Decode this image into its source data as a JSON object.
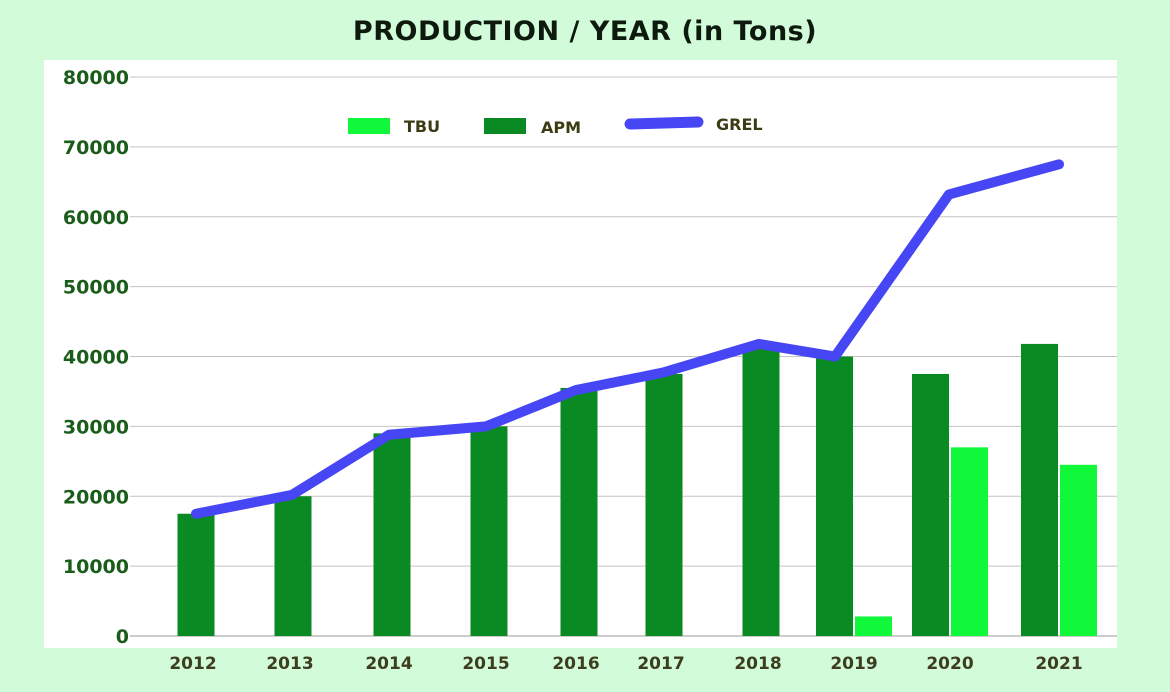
{
  "chart_data": {
    "type": "bar",
    "title": "PRODUCTION / YEAR (in Tons)",
    "xlabel": "",
    "ylabel": "",
    "categories": [
      "2012",
      "2013",
      "2014",
      "2015",
      "2016",
      "2017",
      "2018",
      "2019",
      "2020",
      "2021"
    ],
    "ylim": [
      0,
      80000
    ],
    "yticks": [
      "0",
      "10000",
      "20000",
      "30000",
      "40000",
      "50000",
      "60000",
      "70000",
      "80000"
    ],
    "grid": true,
    "legend_position": "top",
    "series": [
      {
        "name": "TBU",
        "kind": "bar",
        "color": "#11f83a",
        "values": [
          null,
          null,
          null,
          null,
          null,
          null,
          null,
          2800,
          27000,
          24500
        ]
      },
      {
        "name": "APM",
        "kind": "bar",
        "color": "#0a8a22",
        "values": [
          17500,
          20000,
          29000,
          30000,
          35500,
          37500,
          41500,
          40000,
          37500,
          41800
        ]
      },
      {
        "name": "GREL",
        "kind": "line",
        "color": "#4646f5",
        "values": [
          17500,
          20200,
          28800,
          30000,
          35200,
          37700,
          41800,
          40000,
          63200,
          67500
        ]
      }
    ]
  }
}
